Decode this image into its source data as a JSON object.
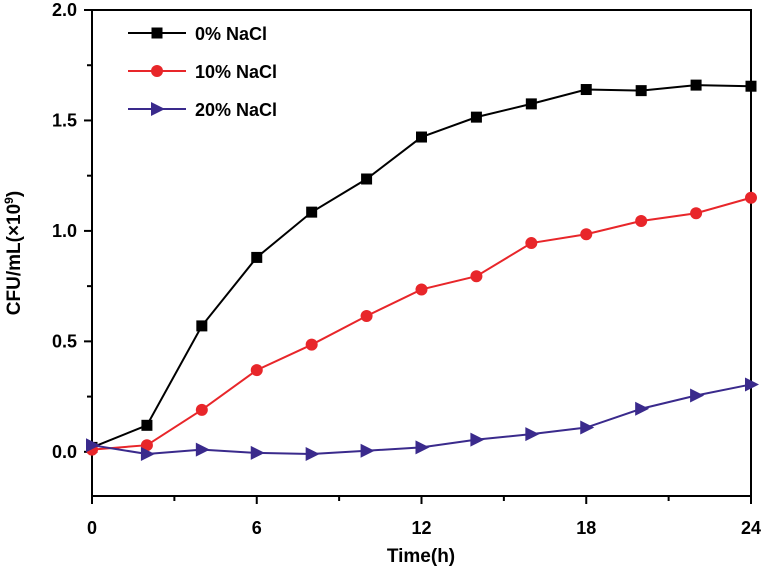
{
  "chart_data": {
    "type": "line",
    "xlabel": "Time(h)",
    "ylabel_main": "CFU/mL(×10",
    "ylabel_sup": "9",
    "ylabel_close": ")",
    "xlim": [
      0,
      24
    ],
    "ylim": [
      -0.2,
      2.0
    ],
    "xticks": [
      0,
      6,
      12,
      18,
      24
    ],
    "xtick_labels": [
      "0",
      "6",
      "12",
      "18",
      "24"
    ],
    "yticks": [
      0.0,
      0.5,
      1.0,
      1.5,
      2.0
    ],
    "ytick_labels": [
      "0.0",
      "0.5",
      "1.0",
      "1.5",
      "2.0"
    ],
    "grid": false,
    "legend_position": "top-left",
    "x": [
      0,
      2,
      4,
      6,
      8,
      10,
      12,
      14,
      16,
      18,
      20,
      22,
      24
    ],
    "series": [
      {
        "name": "0% NaCl",
        "color": "#000000",
        "marker": "square",
        "values": [
          0.02,
          0.12,
          0.57,
          0.88,
          1.085,
          1.235,
          1.425,
          1.515,
          1.575,
          1.64,
          1.635,
          1.66,
          1.655
        ]
      },
      {
        "name": "10% NaCl",
        "color": "#e8262a",
        "marker": "circle",
        "values": [
          0.01,
          0.03,
          0.19,
          0.37,
          0.485,
          0.615,
          0.735,
          0.795,
          0.945,
          0.985,
          1.045,
          1.08,
          1.15
        ]
      },
      {
        "name": "20% NaCl",
        "color": "#3a2a8c",
        "marker": "triangle-right",
        "values": [
          0.03,
          -0.01,
          0.01,
          -0.005,
          -0.01,
          0.005,
          0.02,
          0.055,
          0.08,
          0.11,
          0.195,
          0.255,
          0.305
        ]
      }
    ]
  }
}
